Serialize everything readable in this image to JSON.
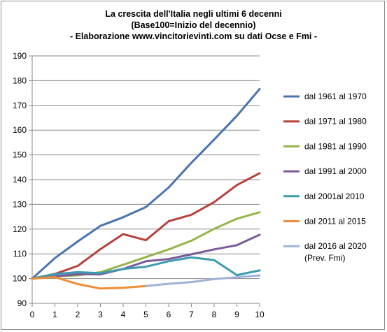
{
  "chart_data": {
    "type": "line",
    "title": "La crescita dell'Italia negli ultimi 6 decenni",
    "subtitle": "(Base100=Inizio del decennio)",
    "source": "- Elaborazione  www.vincitorievinti.com su dati Ocse e Fmi -",
    "xlabel": "",
    "ylabel": "",
    "x_ticks": [
      0,
      1,
      2,
      3,
      4,
      5,
      6,
      7,
      8,
      9,
      10
    ],
    "y_ticks": [
      90,
      100,
      110,
      120,
      130,
      140,
      150,
      160,
      170,
      180,
      190
    ],
    "xlim": [
      0,
      10
    ],
    "ylim": [
      90,
      190
    ],
    "grid": "horizontal",
    "legend_position": "right",
    "series": [
      {
        "name": "dal 1961 al 1970",
        "color": "#4a74b0",
        "x": [
          0,
          1,
          2,
          3,
          4,
          5,
          6,
          7,
          8,
          9,
          10
        ],
        "values": [
          100,
          108.3,
          115,
          121.3,
          124.8,
          128.9,
          136.8,
          146.8,
          156.2,
          165.8,
          176.6
        ]
      },
      {
        "name": "dal 1971 al 1980",
        "color": "#b5423c",
        "x": [
          0,
          1,
          2,
          3,
          4,
          5,
          6,
          7,
          8,
          9,
          10
        ],
        "values": [
          100,
          101.9,
          105.1,
          111.9,
          118,
          115.5,
          123.2,
          125.8,
          130.9,
          137.8,
          142.6
        ]
      },
      {
        "name": "dal 1981 al 1990",
        "color": "#94b54a",
        "x": [
          0,
          1,
          2,
          3,
          4,
          5,
          6,
          7,
          8,
          9,
          10
        ],
        "values": [
          100,
          100.9,
          101.3,
          102.6,
          105.6,
          108.7,
          111.8,
          115.3,
          120.1,
          124.2,
          126.8
        ]
      },
      {
        "name": "dal 1991 al 2000",
        "color": "#7b5a9c",
        "x": [
          0,
          1,
          2,
          3,
          4,
          5,
          6,
          7,
          8,
          9,
          10
        ],
        "values": [
          100,
          100.9,
          101.8,
          101.7,
          103.9,
          107,
          107.9,
          109.8,
          111.8,
          113.5,
          117.7
        ]
      },
      {
        "name": "dal 2001al 2010",
        "color": "#3c9bb0",
        "x": [
          0,
          1,
          2,
          3,
          4,
          5,
          6,
          7,
          8,
          9,
          10
        ],
        "values": [
          100,
          101.8,
          102.6,
          102.2,
          103.9,
          104.8,
          107,
          108.6,
          107.5,
          101.4,
          103.3
        ]
      },
      {
        "name": "dal  2011 al 2015",
        "color": "#ee8c35",
        "x": [
          0,
          1,
          2,
          3,
          4,
          5
        ],
        "values": [
          100,
          100.6,
          97.8,
          96,
          96.3,
          97
        ]
      },
      {
        "name": "dal 2016 al 2020",
        "name_line2": "(Prev. Fmi)",
        "color": "#9fb2d6",
        "x": [
          5,
          6,
          7,
          8,
          9,
          10
        ],
        "values": [
          97,
          97.9,
          98.6,
          99.8,
          100.5,
          101.3
        ]
      }
    ]
  }
}
